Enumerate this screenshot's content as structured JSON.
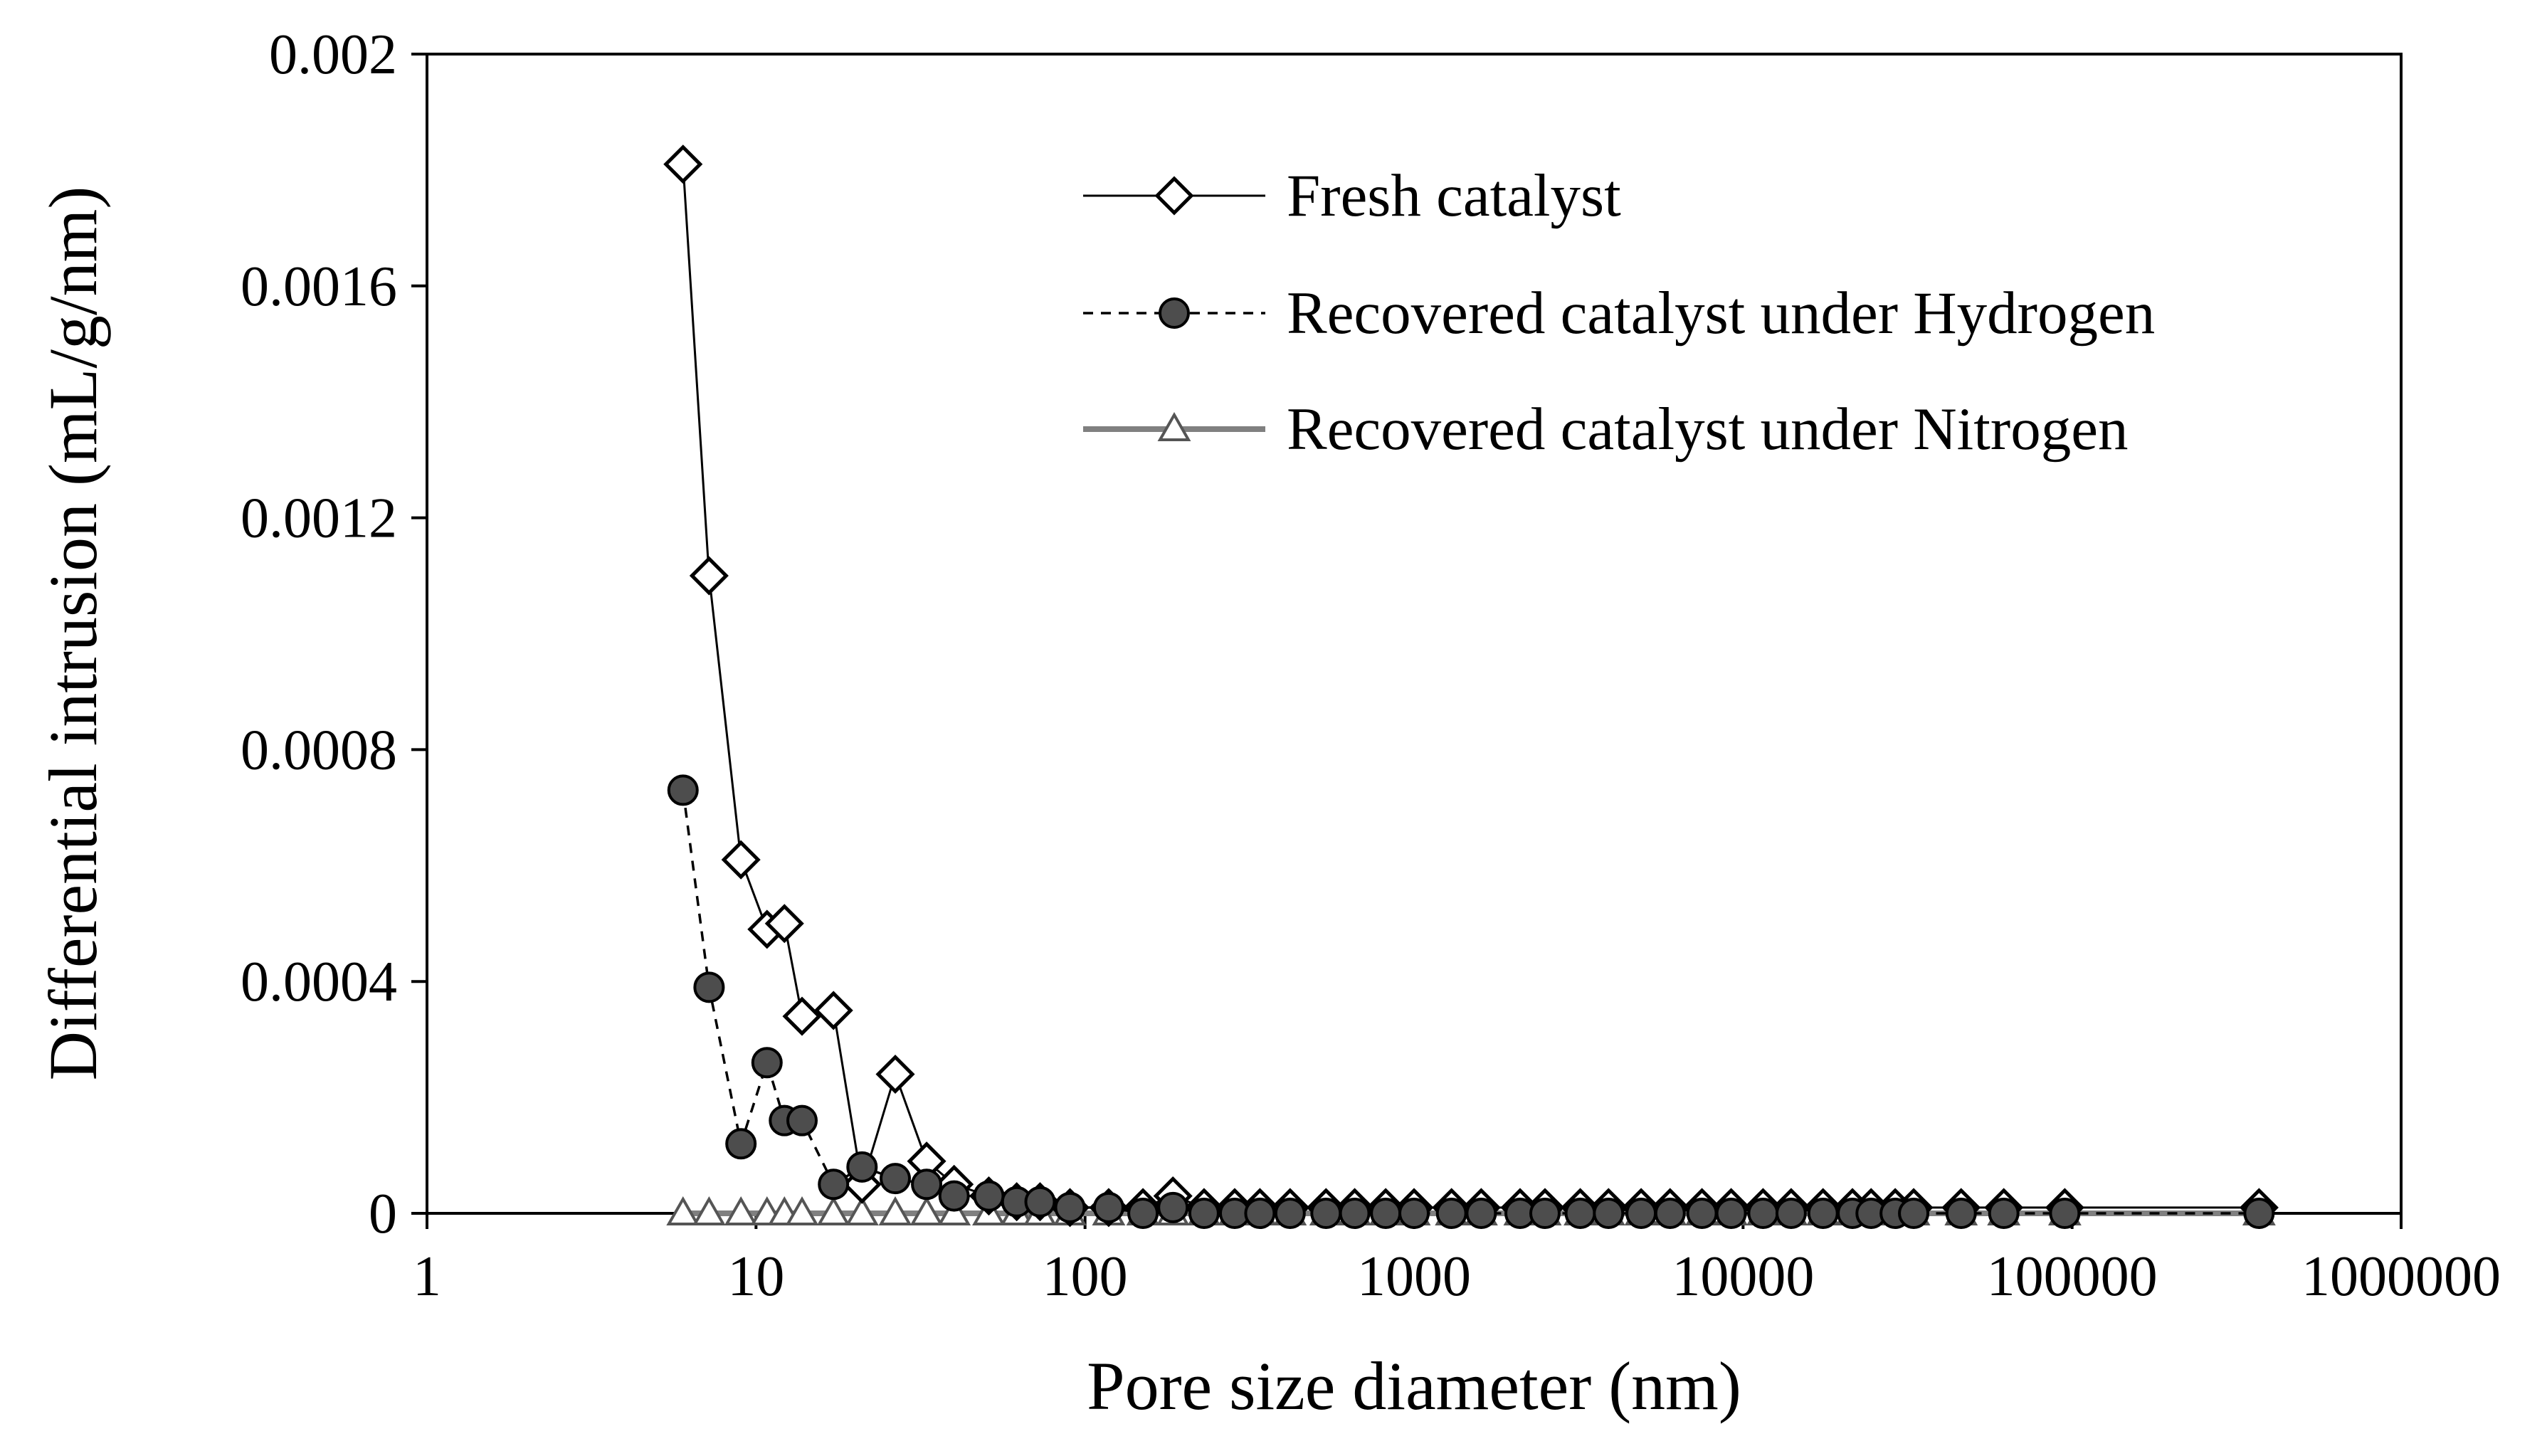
{
  "chart_data": {
    "type": "scatter",
    "title": "",
    "xlabel": "Pore size diameter (nm)",
    "ylabel": "Differential intrusion (mL/g/nm)",
    "x_scale": "log",
    "xlim": [
      1,
      1000000
    ],
    "ylim": [
      0,
      0.002
    ],
    "x_ticks": [
      1,
      10,
      100,
      1000,
      10000,
      100000,
      1000000
    ],
    "x_tick_labels": [
      "1",
      "10",
      "100",
      "1000",
      "10000",
      "100000",
      "1000000"
    ],
    "y_ticks": [
      0,
      0.0004,
      0.0008,
      0.0012,
      0.0016,
      0.002
    ],
    "y_tick_labels": [
      "0",
      "0.0004",
      "0.0008",
      "0.0012",
      "0.0016",
      "0.002"
    ],
    "grid": false,
    "legend_position": "top-right",
    "series": [
      {
        "name": "Fresh catalyst",
        "marker": "diamond-open",
        "line": "solid-black",
        "color": "#000000",
        "x": [
          6,
          7.2,
          9,
          10.8,
          12.2,
          13.8,
          17.2,
          21,
          26.5,
          33,
          40,
          51,
          62,
          73,
          90,
          118,
          150,
          185,
          230,
          285,
          340,
          420,
          540,
          660,
          820,
          1000,
          1300,
          1600,
          2100,
          2500,
          3200,
          3900,
          4900,
          6000,
          7500,
          9200,
          11500,
          14000,
          17500,
          21500,
          24500,
          29000,
          33000,
          46000,
          62000,
          95000,
          370000
        ],
        "y": [
          0.00181,
          0.0011,
          0.00061,
          0.00049,
          0.0005,
          0.00034,
          0.00035,
          5e-05,
          0.00024,
          9e-05,
          5e-05,
          3e-05,
          2e-05,
          2e-05,
          1e-05,
          1e-05,
          1e-05,
          3e-05,
          1e-05,
          1e-05,
          1e-05,
          1e-05,
          1e-05,
          1e-05,
          1e-05,
          1e-05,
          1e-05,
          1e-05,
          1e-05,
          1e-05,
          1e-05,
          1e-05,
          1e-05,
          1e-05,
          1e-05,
          1e-05,
          1e-05,
          1e-05,
          1e-05,
          1e-05,
          1e-05,
          1e-05,
          1e-05,
          1e-05,
          1e-05,
          1e-05,
          1e-05
        ]
      },
      {
        "name": "Recovered catalyst under Hydrogen",
        "marker": "circle-filled",
        "line": "dashed-black",
        "color": "#404040",
        "x": [
          6,
          7.2,
          9,
          10.8,
          12.2,
          13.8,
          17.2,
          21,
          26.5,
          33,
          40,
          51,
          62,
          73,
          90,
          118,
          150,
          185,
          230,
          285,
          340,
          420,
          540,
          660,
          820,
          1000,
          1300,
          1600,
          2100,
          2500,
          3200,
          3900,
          4900,
          6000,
          7500,
          9200,
          11500,
          14000,
          17500,
          21500,
          24500,
          29000,
          33000,
          46000,
          62000,
          95000,
          370000
        ],
        "y": [
          0.00073,
          0.00039,
          0.00012,
          0.00026,
          0.00016,
          0.00016,
          5e-05,
          8e-05,
          6e-05,
          5e-05,
          3e-05,
          3e-05,
          2e-05,
          2e-05,
          1e-05,
          1e-05,
          0,
          1e-05,
          0,
          0,
          0,
          0,
          0,
          0,
          0,
          0,
          0,
          0,
          0,
          0,
          0,
          0,
          0,
          0,
          0,
          0,
          0,
          0,
          0,
          0,
          0,
          0,
          0,
          0,
          0,
          0,
          0
        ]
      },
      {
        "name": "Recovered catalyst under Nitrogen",
        "marker": "triangle-open",
        "line": "solid-gray",
        "color": "#808080",
        "x": [
          6,
          7.2,
          9,
          10.8,
          12.2,
          13.8,
          17.2,
          21,
          26.5,
          33,
          40,
          51,
          62,
          73,
          90,
          118,
          150,
          185,
          230,
          285,
          340,
          420,
          540,
          660,
          820,
          1000,
          1300,
          1600,
          2100,
          2500,
          3200,
          3900,
          4900,
          6000,
          7500,
          9200,
          11500,
          14000,
          17500,
          21500,
          24500,
          29000,
          33000,
          46000,
          62000,
          95000,
          370000
        ],
        "y": [
          0,
          0,
          0,
          0,
          0,
          0,
          0,
          0,
          0,
          0,
          0,
          0,
          0,
          0,
          0,
          0,
          0,
          0,
          0,
          0,
          0,
          0,
          0,
          0,
          0,
          0,
          0,
          0,
          0,
          0,
          0,
          0,
          0,
          0,
          0,
          0,
          0,
          0,
          0,
          0,
          0,
          0,
          0,
          0,
          0,
          0,
          0
        ]
      }
    ]
  }
}
